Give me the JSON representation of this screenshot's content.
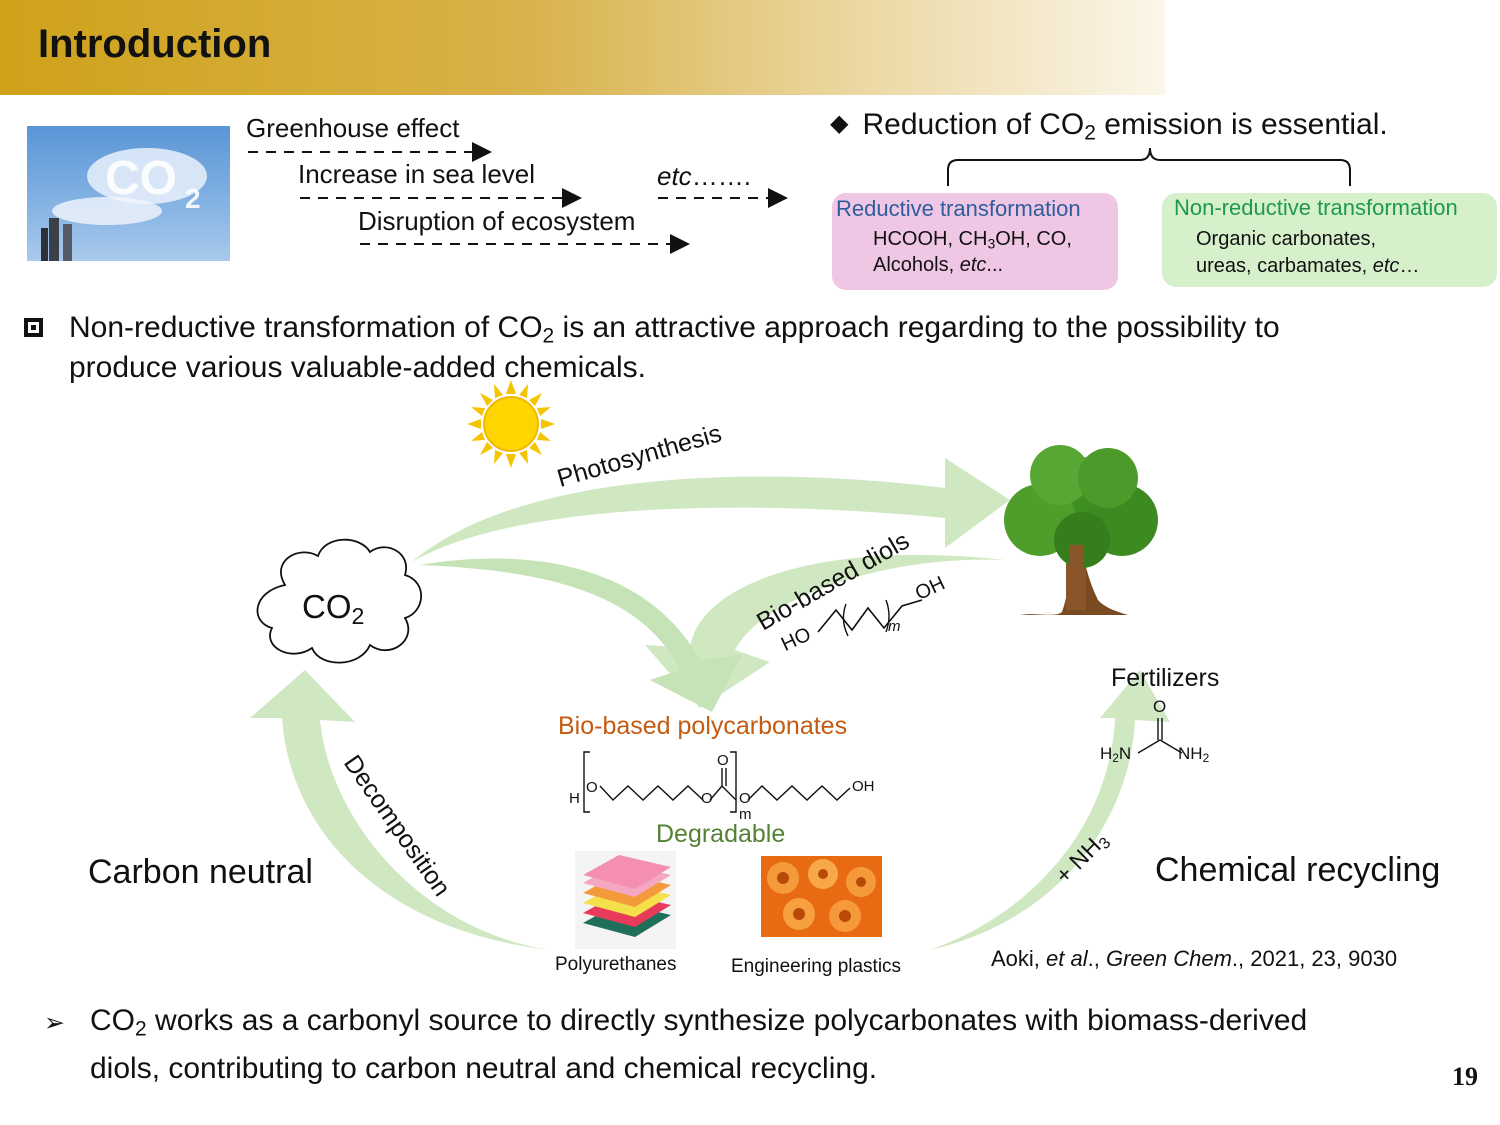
{
  "header": {
    "title": "Introduction"
  },
  "left_effects": {
    "greenhouse": "Greenhouse effect",
    "sea_level": "Increase in sea level",
    "etc": "etc",
    "etc_dots": "…….",
    "ecosystem": "Disruption of ecosystem"
  },
  "reduction": {
    "bullet": "◆",
    "pre": "Reduction of CO",
    "sub": "2",
    "post": " emission is essential."
  },
  "reductive": {
    "title": "Reductive transformation",
    "line1_pre": "HCOOH, CH",
    "line1_sub": "3",
    "line1_post": "OH, CO,",
    "line2_pre": "Alcohols, ",
    "line2_etc": "etc",
    "line2_post": "..."
  },
  "nonreductive": {
    "title": "Non-reductive transformation",
    "line1": "Organic carbonates,",
    "line2_pre": "ureas, carbamates, ",
    "line2_etc": "etc",
    "line2_post": "…"
  },
  "statement": {
    "pre": "Non-reductive transformation of CO",
    "sub": "2",
    "post": " is an attractive approach regarding to the possibility to",
    "line2": "produce various valuable-added chemicals."
  },
  "cycle": {
    "co2_main": "CO",
    "co2_sub": "2",
    "photosynthesis": "Photosynthesis",
    "bio_diols": "Bio-based diols",
    "diol_ho": "HO",
    "diol_oh": "OH",
    "diol_m": "m",
    "bio_polycarbonates": "Bio-based polycarbonates",
    "pc_h": "H",
    "pc_o1": "O",
    "pc_o2": "O",
    "pc_o3": "O",
    "pc_o4": "O",
    "pc_oh": "OH",
    "pc_m": "m",
    "degradable": "Degradable",
    "decomposition": "Decomposition",
    "fertilizers": "Fertilizers",
    "urea_o": "O",
    "urea_h2n": "H",
    "urea_h2n_sub": "2",
    "urea_h2n_n": "N",
    "urea_nh2": "NH",
    "urea_nh2_sub": "2",
    "nh3": "+ NH",
    "nh3_sub": "3",
    "carbon_neutral": "Carbon neutral",
    "chemical_recycling": "Chemical recycling",
    "polyurethanes": "Polyurethanes",
    "engineering_plastics": "Engineering plastics"
  },
  "citation": {
    "author": "Aoki, ",
    "etal": "et al",
    "sep": "., ",
    "journal": "Green Chem",
    "rest": "., 2021, 23, 9030"
  },
  "conclusion": {
    "bullet": "➢",
    "pre": "CO",
    "sub": "2",
    "post": " works as a carbonyl source to directly synthesize polycarbonates with biomass-derived",
    "line2": "diols, contributing to carbon neutral and chemical recycling."
  },
  "page_number": "19",
  "colors": {
    "header_gold": "#cfa21a",
    "reductive_title": "#2e5d9c",
    "nonreductive_title": "#1f9a4a",
    "bio_polycarbonates": "#c55a11",
    "degradable": "#548235",
    "arrow_green": "#cfe8c2",
    "pink_box": "#efc6e4",
    "green_box": "#d6f0cc"
  }
}
